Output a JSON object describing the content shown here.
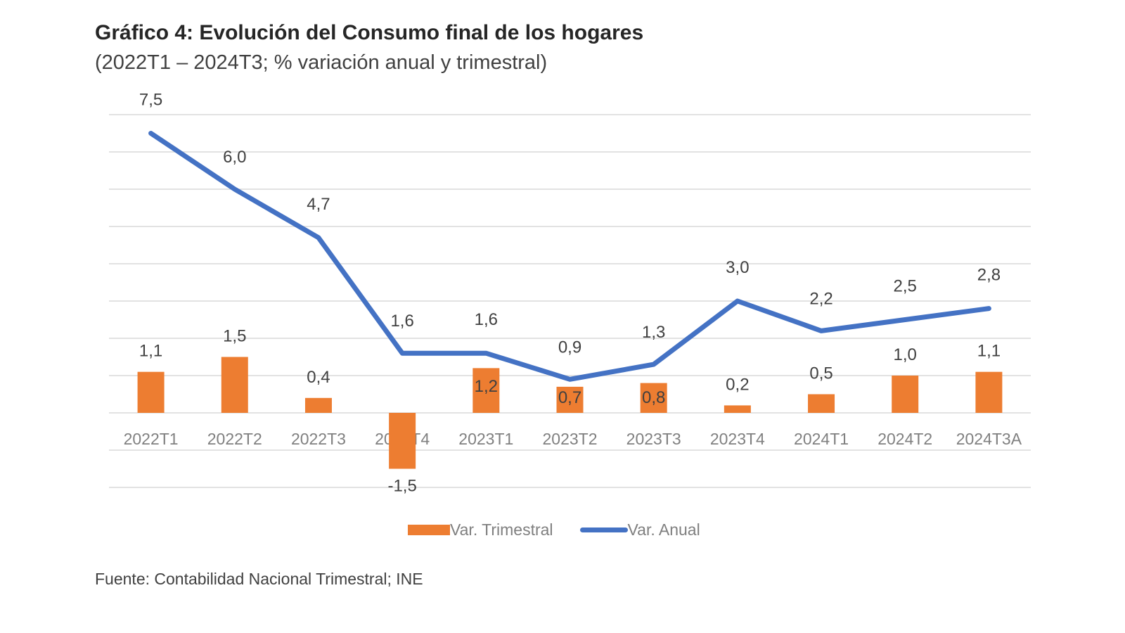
{
  "chart_data": {
    "type": "bar+line",
    "title": "Gráfico 4: Evolución del Consumo final de los hogares",
    "subtitle": "(2022T1 – 2024T3; % variación anual y trimestral)",
    "categories": [
      "2022T1",
      "2022T2",
      "2022T3",
      "2022T4",
      "2023T1",
      "2023T2",
      "2023T3",
      "2023T4",
      "2024T1",
      "2024T2",
      "2024T3A"
    ],
    "series": [
      {
        "name": "Var. Trimestral",
        "type": "bar",
        "color": "#ed7d31",
        "values": [
          1.1,
          1.5,
          0.4,
          -1.5,
          1.2,
          0.7,
          0.8,
          0.2,
          0.5,
          1.0,
          1.1
        ],
        "labels": [
          "1,1",
          "1,5",
          "0,4",
          "-1,5",
          "1,2",
          "0,7",
          "0,8",
          "0,2",
          "0,5",
          "1,0",
          "1,1"
        ]
      },
      {
        "name": "Var. Anual",
        "type": "line",
        "color": "#4472c4",
        "values": [
          7.5,
          6.0,
          4.7,
          1.6,
          1.6,
          0.9,
          1.3,
          3.0,
          2.2,
          2.5,
          2.8
        ],
        "labels": [
          "7,5",
          "6,0",
          "4,7",
          "1,6",
          "1,6",
          "0,9",
          "1,3",
          "3,0",
          "2,2",
          "2,5",
          "2,8"
        ]
      }
    ],
    "xlabel": "",
    "ylabel": "",
    "ylim": [
      -2,
      8
    ],
    "grid": true,
    "y_axis_labels_visible": false,
    "legend_position": "bottom",
    "source": "Fuente: Contabilidad Nacional Trimestral; INE"
  }
}
